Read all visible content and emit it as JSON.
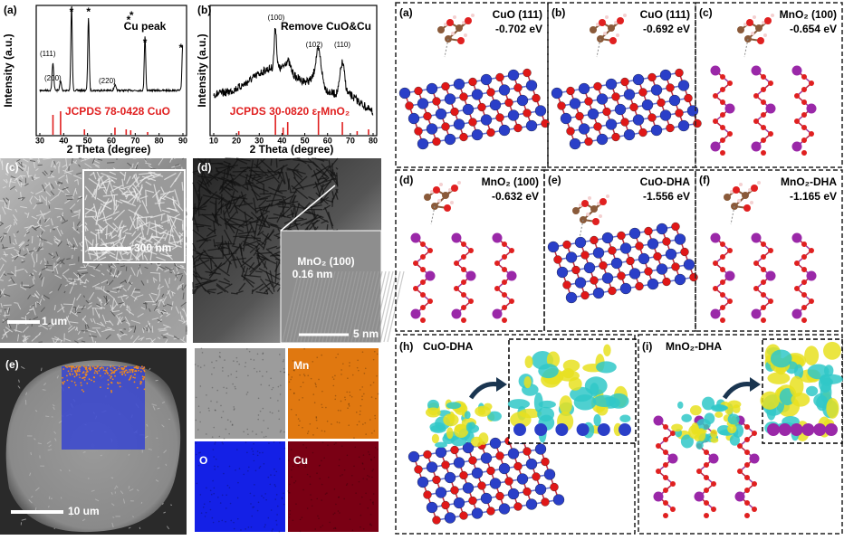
{
  "panels": {
    "a": {
      "label": "(a)",
      "y_label": "Intensity (a.u.)",
      "x_label": "2 Theta (degree)",
      "xticks": [
        "30",
        "40",
        "50",
        "60",
        "70",
        "80",
        "90"
      ],
      "peaks": [
        "(111)",
        "(200)",
        "(220)"
      ],
      "marker": "*",
      "legend": "Cu peak",
      "reference": "JCPDS 78-0428 CuO"
    },
    "b": {
      "label": "(b)",
      "y_label": "Intensity (a.u.)",
      "x_label": "2 Theta (degree)",
      "xticks": [
        "10",
        "20",
        "30",
        "40",
        "50",
        "60",
        "70",
        "80"
      ],
      "peaks": [
        "(100)",
        "(102)",
        "(110)"
      ],
      "legend": "Remove CuO&Cu",
      "reference": "JCPDS 30-0820 ε-MnO₂"
    },
    "c": {
      "label": "(c)",
      "inset_scale": "300 nm",
      "scale": "1 um"
    },
    "d": {
      "label": "(d)",
      "plane": "MnO₂ (100)",
      "spacing": "0.16 nm",
      "scale": "5 nm"
    },
    "e": {
      "label": "(e)",
      "scale": "10 um",
      "maps": [
        "Mn",
        "O",
        "Cu"
      ]
    },
    "dft": [
      {
        "label": "(a)",
        "surface": "CuO (111)",
        "energy": "-0.702 eV"
      },
      {
        "label": "(b)",
        "surface": "CuO (111)",
        "energy": "-0.692 eV"
      },
      {
        "label": "(c)",
        "surface": "MnO₂ (100)",
        "energy": "-0.654 eV"
      },
      {
        "label": "(d)",
        "surface": "MnO₂ (100)",
        "energy": "-0.632 eV"
      },
      {
        "label": "(e)",
        "surface": "CuO-DHA",
        "energy": "-1.556 eV"
      },
      {
        "label": "(f)",
        "surface": "MnO₂-DHA",
        "energy": "-1.165 eV"
      }
    ],
    "charge": [
      {
        "label": "(h)",
        "system": "CuO-DHA"
      },
      {
        "label": "(i)",
        "system": "MnO₂-DHA"
      }
    ]
  }
}
